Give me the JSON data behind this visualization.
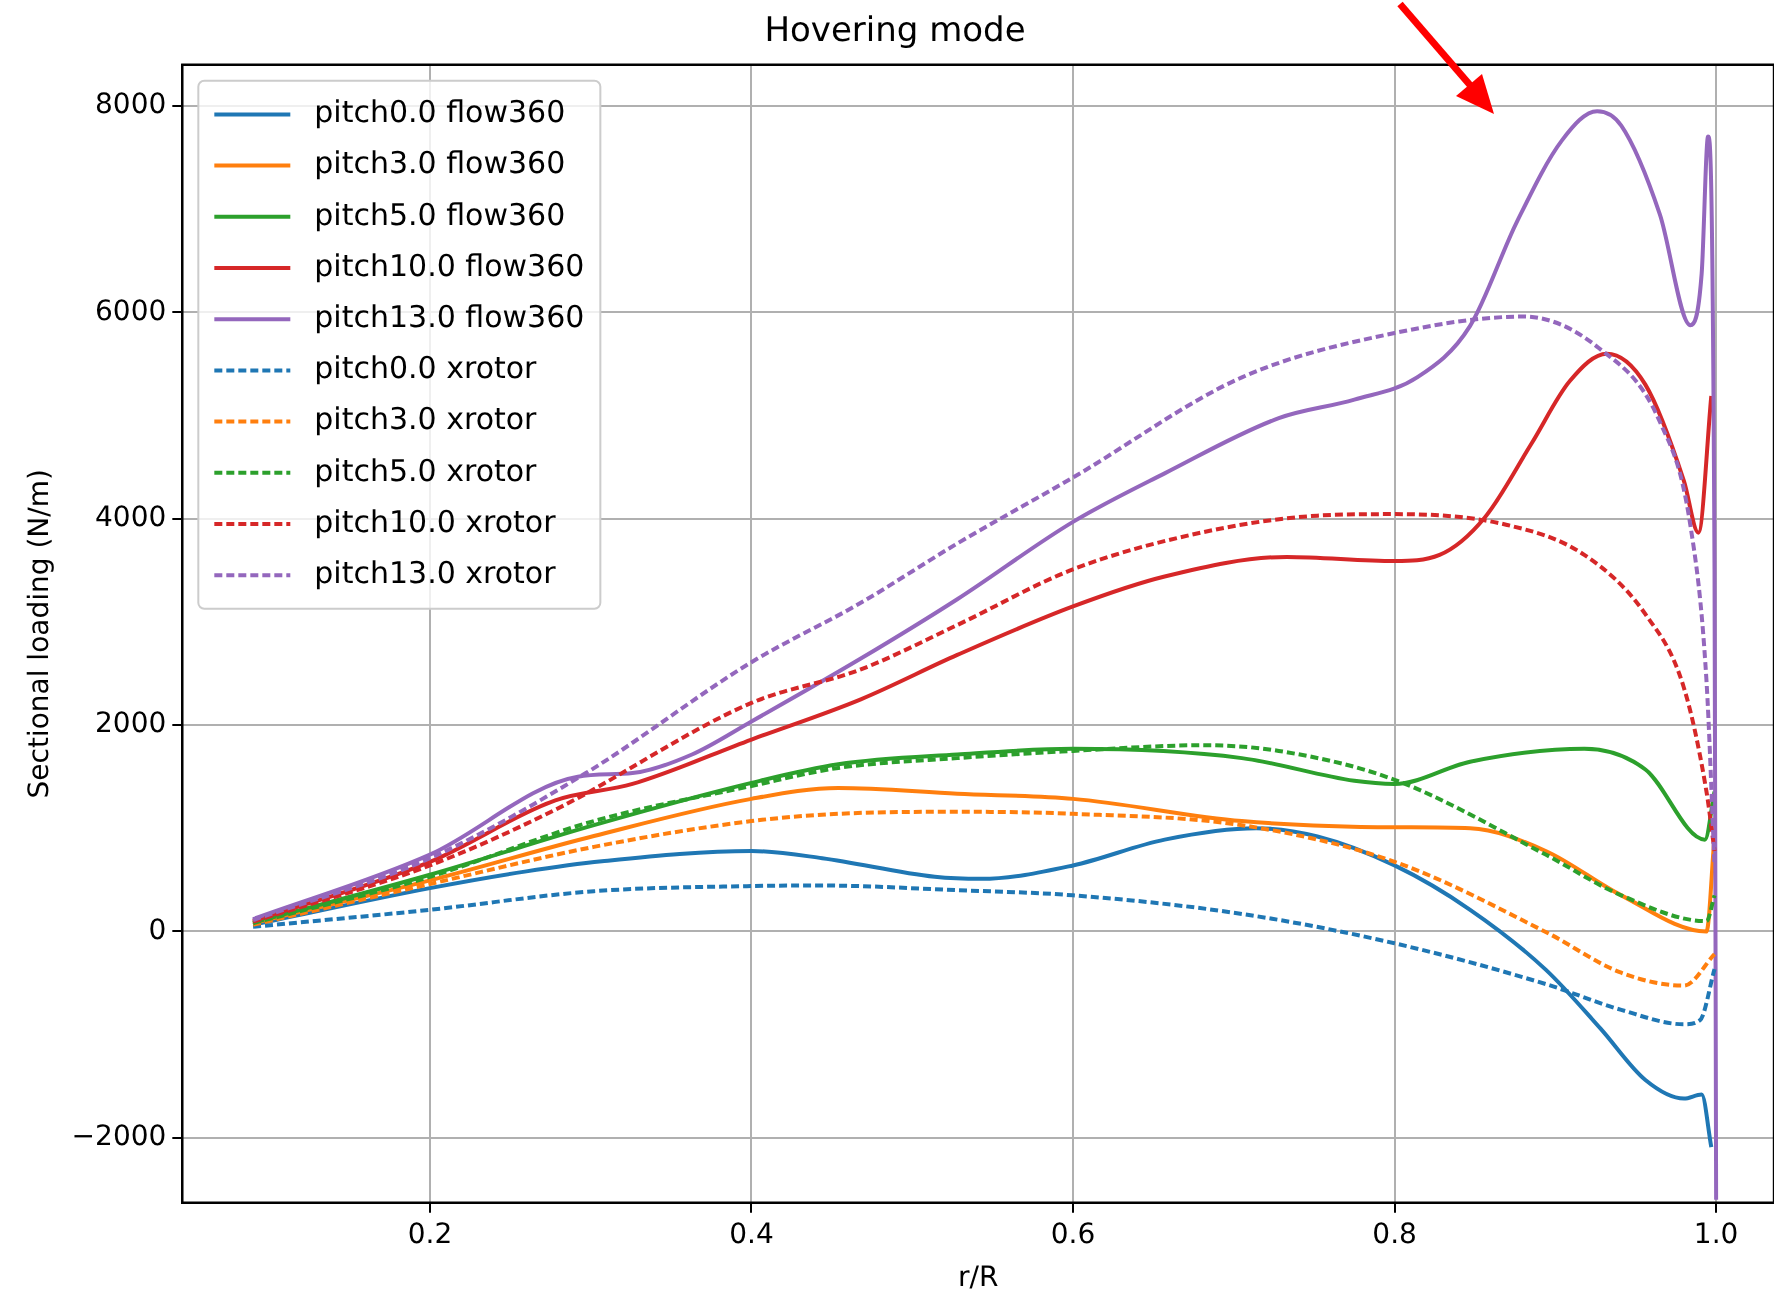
{
  "chart_data": {
    "type": "line",
    "title": "Hovering mode",
    "xlabel": "r/R",
    "ylabel": "Sectional loading (N/m)",
    "xlim": [
      0.046,
      1.036
    ],
    "ylim": [
      -2630,
      8400
    ],
    "xticks": [
      0.2,
      0.4,
      0.6,
      0.8,
      {
        "value": 1,
        "label": "1.0"
      }
    ],
    "yticks": [
      {
        "value": -2000,
        "label": "−2000"
      },
      0,
      2000,
      4000,
      6000,
      8000
    ],
    "grid": true,
    "legend": "top left",
    "marker": "none",
    "series": [
      {
        "name": "pitch0.0 flow360",
        "color": "#1f77b4",
        "line_style": "solid",
        "x": [
          0.09,
          0.2,
          0.259,
          0.307,
          0.4,
          0.444,
          0.514,
          0.543,
          0.6,
          0.657,
          0.714,
          0.752,
          0.8,
          0.847,
          0.894,
          0.928,
          0.956,
          0.98,
          0.991,
          0.997
        ],
        "values": [
          65,
          420,
          580,
          680,
          780,
          710,
          530,
          510,
          640,
          890,
          1000,
          920,
          640,
          210,
          -370,
          -940,
          -1440,
          -1620,
          -1580,
          -2090
        ]
      },
      {
        "name": "pitch3.0 flow360",
        "color": "#ff7f0e",
        "line_style": "solid",
        "x": [
          0.09,
          0.2,
          0.302,
          0.4,
          0.454,
          0.528,
          0.6,
          0.705,
          0.8,
          0.847,
          0.894,
          0.941,
          0.994,
          0.999
        ],
        "values": [
          80,
          495,
          925,
          1285,
          1390,
          1335,
          1285,
          1070,
          1010,
          1000,
          780,
          350,
          0,
          925
        ]
      },
      {
        "name": "pitch5.0 flow360",
        "color": "#2ca02c",
        "line_style": "solid",
        "x": [
          0.09,
          0.2,
          0.302,
          0.4,
          0.454,
          0.528,
          0.6,
          0.705,
          0.775,
          0.8,
          0.847,
          0.918,
          0.956,
          0.993,
          0.999
        ],
        "values": [
          85,
          550,
          1030,
          1440,
          1620,
          1715,
          1770,
          1680,
          1460,
          1430,
          1645,
          1770,
          1570,
          890,
          1355
        ]
      },
      {
        "name": "pitch10.0 flow360",
        "color": "#d62728",
        "line_style": "solid",
        "x": [
          0.09,
          0.2,
          0.278,
          0.326,
          0.4,
          0.468,
          0.528,
          0.6,
          0.657,
          0.733,
          0.8,
          0.828,
          0.856,
          0.885,
          0.909,
          0.932,
          0.956,
          0.98,
          0.989,
          0.997
        ],
        "values": [
          100,
          675,
          1270,
          1430,
          1860,
          2250,
          2680,
          3150,
          3440,
          3630,
          3590,
          3650,
          4010,
          4725,
          5335,
          5600,
          5300,
          4365,
          3865,
          5190
        ]
      },
      {
        "name": "pitch13.0 flow360",
        "color": "#9467bd",
        "line_style": "solid",
        "x": [
          0.09,
          0.2,
          0.292,
          0.326,
          0.363,
          0.4,
          0.468,
          0.528,
          0.6,
          0.657,
          0.728,
          0.775,
          0.814,
          0.847,
          0.876,
          0.904,
          0.926,
          0.941,
          0.965,
          0.984,
          0.991,
          0.995,
          0.999,
          1.0
        ],
        "values": [
          120,
          745,
          1500,
          1535,
          1715,
          2035,
          2645,
          3220,
          3970,
          4440,
          4975,
          5155,
          5370,
          5870,
          6875,
          7665,
          7950,
          7810,
          6950,
          5875,
          6375,
          7705,
          3510,
          -2600
        ]
      },
      {
        "name": "pitch0.0 xrotor",
        "color": "#1f77b4",
        "line_style": "dashed",
        "x": [
          0.09,
          0.2,
          0.302,
          0.4,
          0.444,
          0.528,
          0.6,
          0.705,
          0.8,
          0.894,
          0.941,
          0.98,
          0.99,
          0.999
        ],
        "values": [
          45,
          210,
          390,
          440,
          445,
          400,
          350,
          170,
          -115,
          -510,
          -760,
          -900,
          -860,
          -365
        ]
      },
      {
        "name": "pitch3.0 xrotor",
        "color": "#ff7f0e",
        "line_style": "dashed",
        "x": [
          0.09,
          0.2,
          0.302,
          0.4,
          0.454,
          0.528,
          0.6,
          0.705,
          0.8,
          0.894,
          0.941,
          0.98,
          0.999
        ],
        "values": [
          65,
          460,
          820,
          1070,
          1140,
          1160,
          1140,
          1030,
          675,
          -5,
          -400,
          -525,
          -220
        ]
      },
      {
        "name": "pitch5.0 xrotor",
        "color": "#2ca02c",
        "line_style": "dashed",
        "x": [
          0.09,
          0.2,
          0.302,
          0.4,
          0.454,
          0.528,
          0.6,
          0.681,
          0.728,
          0.8,
          0.894,
          0.941,
          0.994,
          0.999
        ],
        "values": [
          80,
          530,
          1070,
          1410,
          1585,
          1680,
          1750,
          1805,
          1750,
          1470,
          745,
          350,
          100,
          350
        ]
      },
      {
        "name": "pitch10.0 xrotor",
        "color": "#d62728",
        "line_style": "dashed",
        "x": [
          0.09,
          0.2,
          0.278,
          0.4,
          0.468,
          0.528,
          0.6,
          0.681,
          0.752,
          0.8,
          0.87,
          0.918,
          0.956,
          0.98,
          0.994,
          0.999
        ],
        "values": [
          95,
          640,
          1180,
          2215,
          2540,
          2970,
          3510,
          3870,
          4030,
          4045,
          3940,
          3650,
          3075,
          2360,
          1355,
          780
        ]
      },
      {
        "name": "pitch13.0 xrotor",
        "color": "#9467bd",
        "line_style": "dashed",
        "x": [
          0.09,
          0.2,
          0.297,
          0.4,
          0.468,
          0.528,
          0.6,
          0.705,
          0.8,
          0.88,
          0.927,
          0.965,
          0.984,
          0.994,
          0.999
        ],
        "values": [
          110,
          710,
          1535,
          2610,
          3185,
          3760,
          4400,
          5370,
          5800,
          5960,
          5655,
          4940,
          3935,
          2430,
          640
        ]
      }
    ]
  }
}
